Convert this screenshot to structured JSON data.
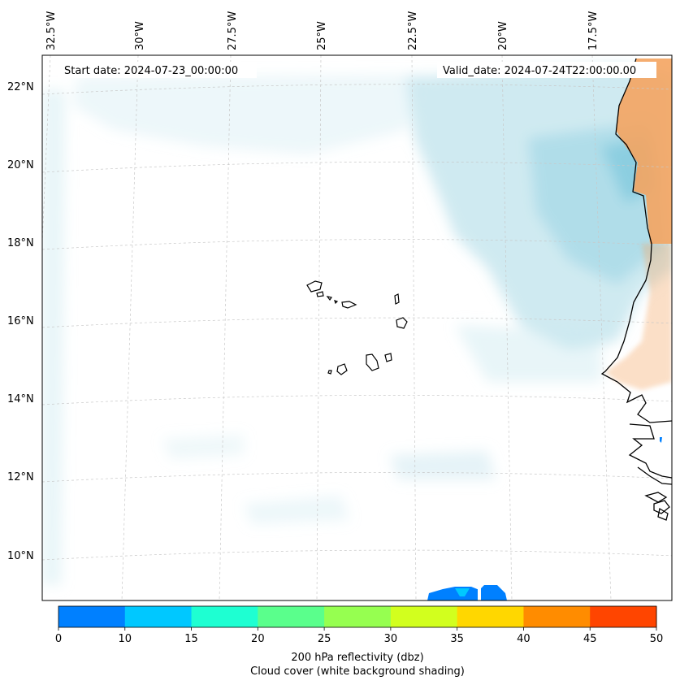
{
  "annotations": {
    "start_date": "Start date: 2024-07-23_00:00:00",
    "valid_date": "Valid_date: 2024-07-24T22:00:00.00"
  },
  "longitude_ticks": [
    "32.5°W",
    "30°W",
    "27.5°W",
    "25°W",
    "22.5°W",
    "20°W",
    "17.5°W"
  ],
  "latitude_ticks": [
    "22°N",
    "20°N",
    "18°N",
    "16°N",
    "14°N",
    "12°N",
    "10°N"
  ],
  "colorbar": {
    "label_line1": "200 hPa reflectivity (dbz)",
    "label_line2": "Cloud cover (white background shading)",
    "ticks": [
      "0",
      "10",
      "15",
      "20",
      "25",
      "30",
      "35",
      "40",
      "45",
      "50"
    ],
    "colors": [
      "#0080ff",
      "#00c8ff",
      "#1effd2",
      "#5aff8c",
      "#96ff50",
      "#d2ff1e",
      "#ffd700",
      "#ff8c00",
      "#ff4500"
    ]
  },
  "map_colors": {
    "cloud_shading": "#a8d8e6",
    "reflectivity_land": "#f4a460",
    "reflectivity_low": "#0080ff",
    "reflectivity_mid": "#00c8ff",
    "coastline": "#000000"
  }
}
